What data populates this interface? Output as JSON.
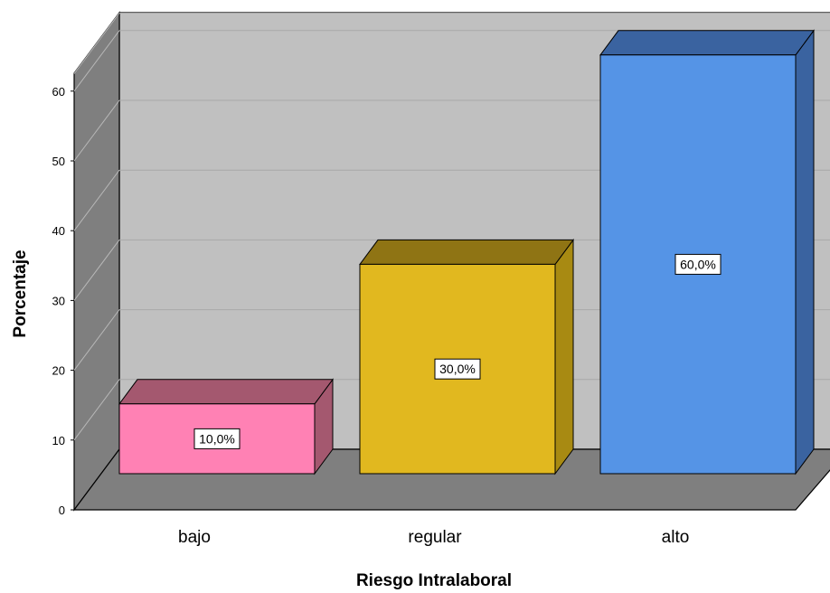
{
  "chart_data": {
    "type": "bar",
    "categories": [
      "bajo",
      "regular",
      "alto"
    ],
    "values": [
      10,
      30,
      60
    ],
    "data_labels": [
      "10,0%",
      "30,0%",
      "60,0%"
    ],
    "xlabel": "Riesgo Intralaboral",
    "ylabel": "Porcentaje",
    "ylim": [
      0,
      65
    ],
    "yticks": [
      0,
      10,
      20,
      30,
      40,
      50,
      60
    ],
    "grid": true,
    "style": "3d",
    "colors": {
      "bajo": {
        "front": "#ff81b4",
        "top": "#a4586f",
        "side": "#a4586f"
      },
      "regular": {
        "front": "#e1b81f",
        "top": "#8f7414",
        "side": "#a88a12"
      },
      "alto": {
        "front": "#5594e6",
        "top": "#3a63a0",
        "side": "#3a63a0"
      },
      "back_wall": "#c0c0c0",
      "side_wall": "#7f7f7f",
      "floor": "#7f7f7f",
      "gridline": "#a8a8a8"
    }
  }
}
